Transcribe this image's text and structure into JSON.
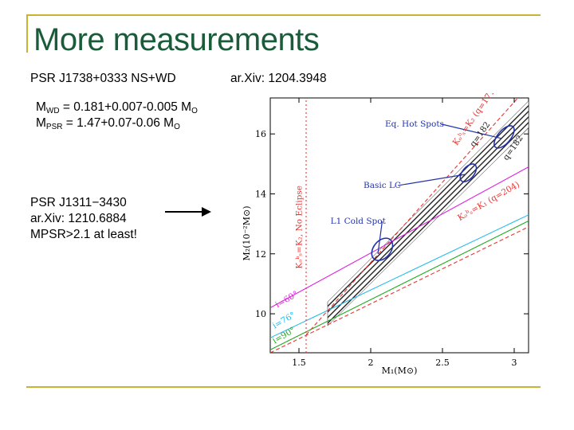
{
  "slide": {
    "title": "More measurements",
    "psr1_name": "PSR J1738+0333 NS+WD",
    "psr1_ref": "ar.Xiv: 1204.3948",
    "mwd_line": {
      "m": "M",
      "sub": "WD",
      "value": " = 0.181+0.007-0.005 M",
      "sub2": "O"
    },
    "mpsr_line": {
      "m": "M",
      "sub": "PSR",
      "value": " = 1.47+0.07-0.06 M",
      "sub2": "O"
    },
    "psr2_name": "PSR J1311−3430",
    "psr2_ref": "ar.Xiv: 1210.6884",
    "psr2_note": "MPSR>2.1 at least!"
  },
  "chart_data": {
    "type": "line",
    "xlabel": "M₁(M⊙)",
    "ylabel": "M₂(10⁻²M⊙)",
    "xlim": [
      1.3,
      3.1
    ],
    "ylim": [
      8.7,
      17.2
    ],
    "xticks": [
      "1.5",
      "2",
      "2.5",
      "3"
    ],
    "yticks": [
      "10",
      "12",
      "14",
      "16"
    ],
    "series": [
      {
        "name": "i=60°",
        "color": "#dd22dd",
        "dash": "",
        "x": [
          1.3,
          3.1
        ],
        "y": [
          10.2,
          14.9
        ]
      },
      {
        "name": "i=76°",
        "color": "#22bbee",
        "dash": "",
        "x": [
          1.3,
          3.1
        ],
        "y": [
          9.2,
          13.3
        ]
      },
      {
        "name": "i=90°",
        "color": "#22aa22",
        "dash": "",
        "x": [
          1.3,
          3.1
        ],
        "y": [
          8.8,
          13.1
        ]
      },
      {
        "name": "K_obs=K_1 (q=204)",
        "color": "#ee3333",
        "dash": "5,3",
        "x": [
          1.3,
          3.1
        ],
        "y": [
          8.7,
          12.9
        ]
      },
      {
        "name": "K_obs=K_2 (q=171)",
        "color": "#ee3333",
        "dash": "5,3",
        "x": [
          1.55,
          3.1
        ],
        "y": [
          9.3,
          17.6
        ]
      },
      {
        "name": "K_obs=K_2, No Eclipse",
        "color": "#ee3333",
        "dash": "2,3",
        "x": [
          1.55,
          1.55
        ],
        "y": [
          8.7,
          17.2
        ]
      }
    ],
    "bands": [
      {
        "name": "q=182",
        "x": [
          1.7,
          3.1
        ],
        "y_low": [
          9.6,
          16.2
        ],
        "y_high": [
          10.4,
          17.1
        ]
      }
    ],
    "ellipses": [
      {
        "name": "L1 Cold Spot",
        "cx": 2.08,
        "cy": 12.15,
        "rx": 0.06,
        "ry": 0.42,
        "color": "#2233aa"
      },
      {
        "name": "Basic LC",
        "cx": 2.68,
        "cy": 14.7,
        "rx": 0.04,
        "ry": 0.35,
        "color": "#2233aa"
      },
      {
        "name": "Eq. Hot Spots",
        "cx": 2.93,
        "cy": 15.9,
        "rx": 0.045,
        "ry": 0.45,
        "color": "#2233aa"
      }
    ],
    "annotations": [
      {
        "text": "Eq. Hot Spots",
        "x": 2.1,
        "y": 16.25,
        "color": "#2233aa",
        "rot": 0,
        "pointer": [
          2.91,
          15.85
        ]
      },
      {
        "text": "Basic LC",
        "x": 1.95,
        "y": 14.2,
        "color": "#2233aa",
        "rot": 0,
        "pointer": [
          2.66,
          14.65
        ]
      },
      {
        "text": "L1 Cold Spot",
        "x": 1.72,
        "y": 13.0,
        "color": "#2233aa",
        "rot": 0,
        "pointer": [
          2.05,
          12.0
        ]
      },
      {
        "text": "Kₒᵇₛ=K₂ (q=171)",
        "x": 2.6,
        "y": 15.6,
        "color": "#ee3333",
        "rot": -55
      },
      {
        "text": "q=182",
        "x": 2.72,
        "y": 15.55,
        "color": "#222222",
        "rot": -55
      },
      {
        "text": "q=182",
        "x": 2.95,
        "y": 15.1,
        "color": "#222222",
        "rot": -55
      },
      {
        "text": "Kₒᵇₛ=K₁ (q=204)",
        "x": 2.62,
        "y": 13.1,
        "color": "#ee3333",
        "rot": -30
      },
      {
        "text": "Kₒᵇₛ=K₂, No Eclipse",
        "x": 1.52,
        "y": 11.5,
        "color": "#ee3333",
        "rot": -90
      },
      {
        "text": "i=60°",
        "x": 1.35,
        "y": 10.2,
        "color": "#dd22dd",
        "rot": -30
      },
      {
        "text": "i=76°",
        "x": 1.33,
        "y": 9.5,
        "color": "#22bbee",
        "rot": -30
      },
      {
        "text": "i=90°",
        "x": 1.33,
        "y": 9.0,
        "color": "#22aa22",
        "rot": -30
      }
    ]
  }
}
